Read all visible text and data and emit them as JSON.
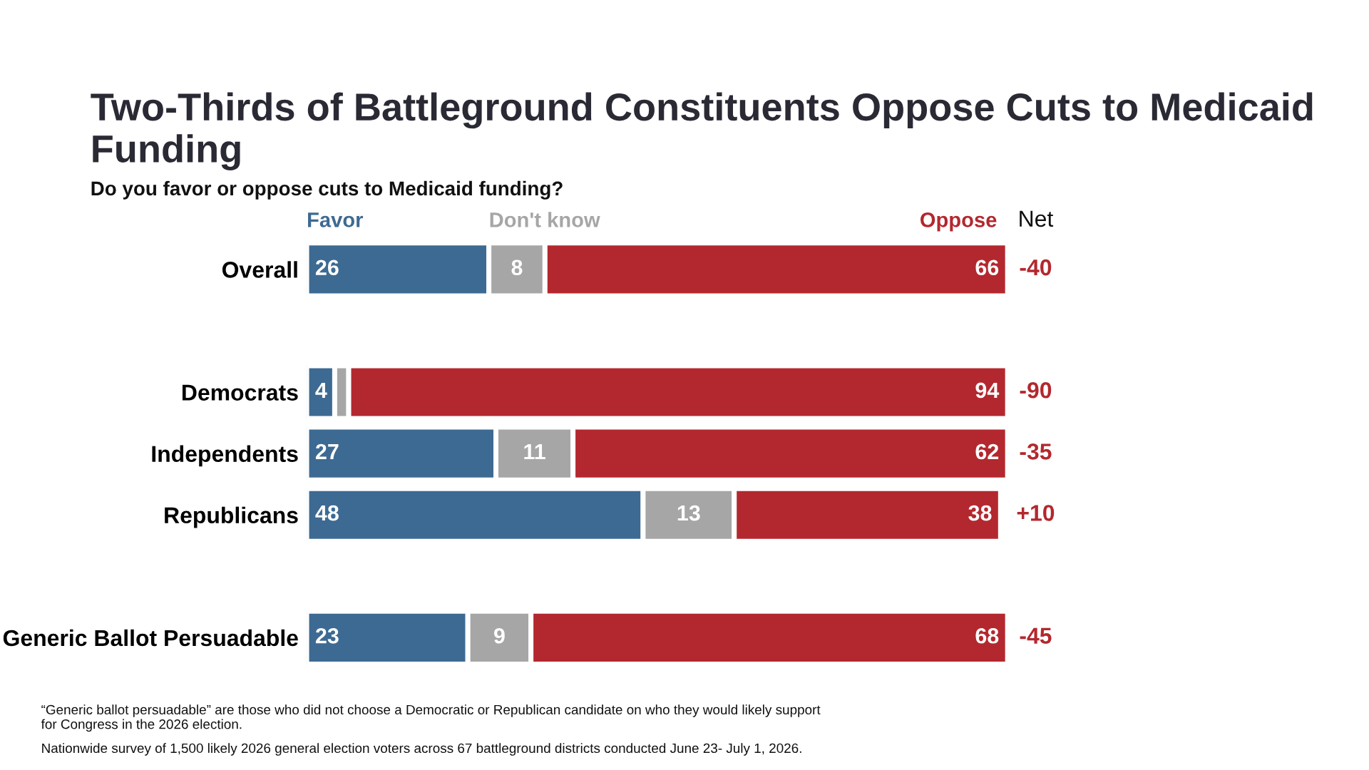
{
  "chart_data": {
    "type": "bar",
    "orientation": "horizontal",
    "stacked": true,
    "title": "Two-Thirds of Battleground Constituents Oppose Cuts to Medicaid Funding",
    "subtitle": "Do you favor or oppose cuts to Medicaid funding?",
    "categories": [
      "Overall",
      null,
      "Democrats",
      "Independents",
      "Republicans",
      null,
      "Generic Ballot Persuadable"
    ],
    "series": [
      {
        "name": "Favor",
        "color": "#3d6a92",
        "values": [
          26,
          null,
          4,
          27,
          48,
          null,
          23
        ],
        "value_labels": [
          "26",
          null,
          "4",
          "27",
          "48",
          null,
          "23"
        ]
      },
      {
        "name": "Don't know",
        "color": "#a6a6a6",
        "values": [
          8,
          null,
          2,
          11,
          13,
          null,
          9
        ],
        "value_labels": [
          "8",
          null,
          null,
          "11",
          "13",
          null,
          "9"
        ]
      },
      {
        "name": "Oppose",
        "color": "#b3282e",
        "values": [
          66,
          null,
          94,
          62,
          38,
          null,
          68
        ],
        "value_labels": [
          "66",
          null,
          "94",
          "62",
          "38",
          null,
          "68"
        ]
      }
    ],
    "legend": "top",
    "grid": false,
    "annotations": [
      "Net",
      "-40",
      "-90",
      "-35",
      "+10",
      "-45",
      "“Generic ballot persuadable” are those who did not choose a Democratic or Republican candidate on who they would likely support\nfor Congress in the 2026 election.",
      "Nationwide survey of 1,500 likely 2026 general election voters across 67 battleground districts conducted June 23- July 1, 2026."
    ]
  }
}
